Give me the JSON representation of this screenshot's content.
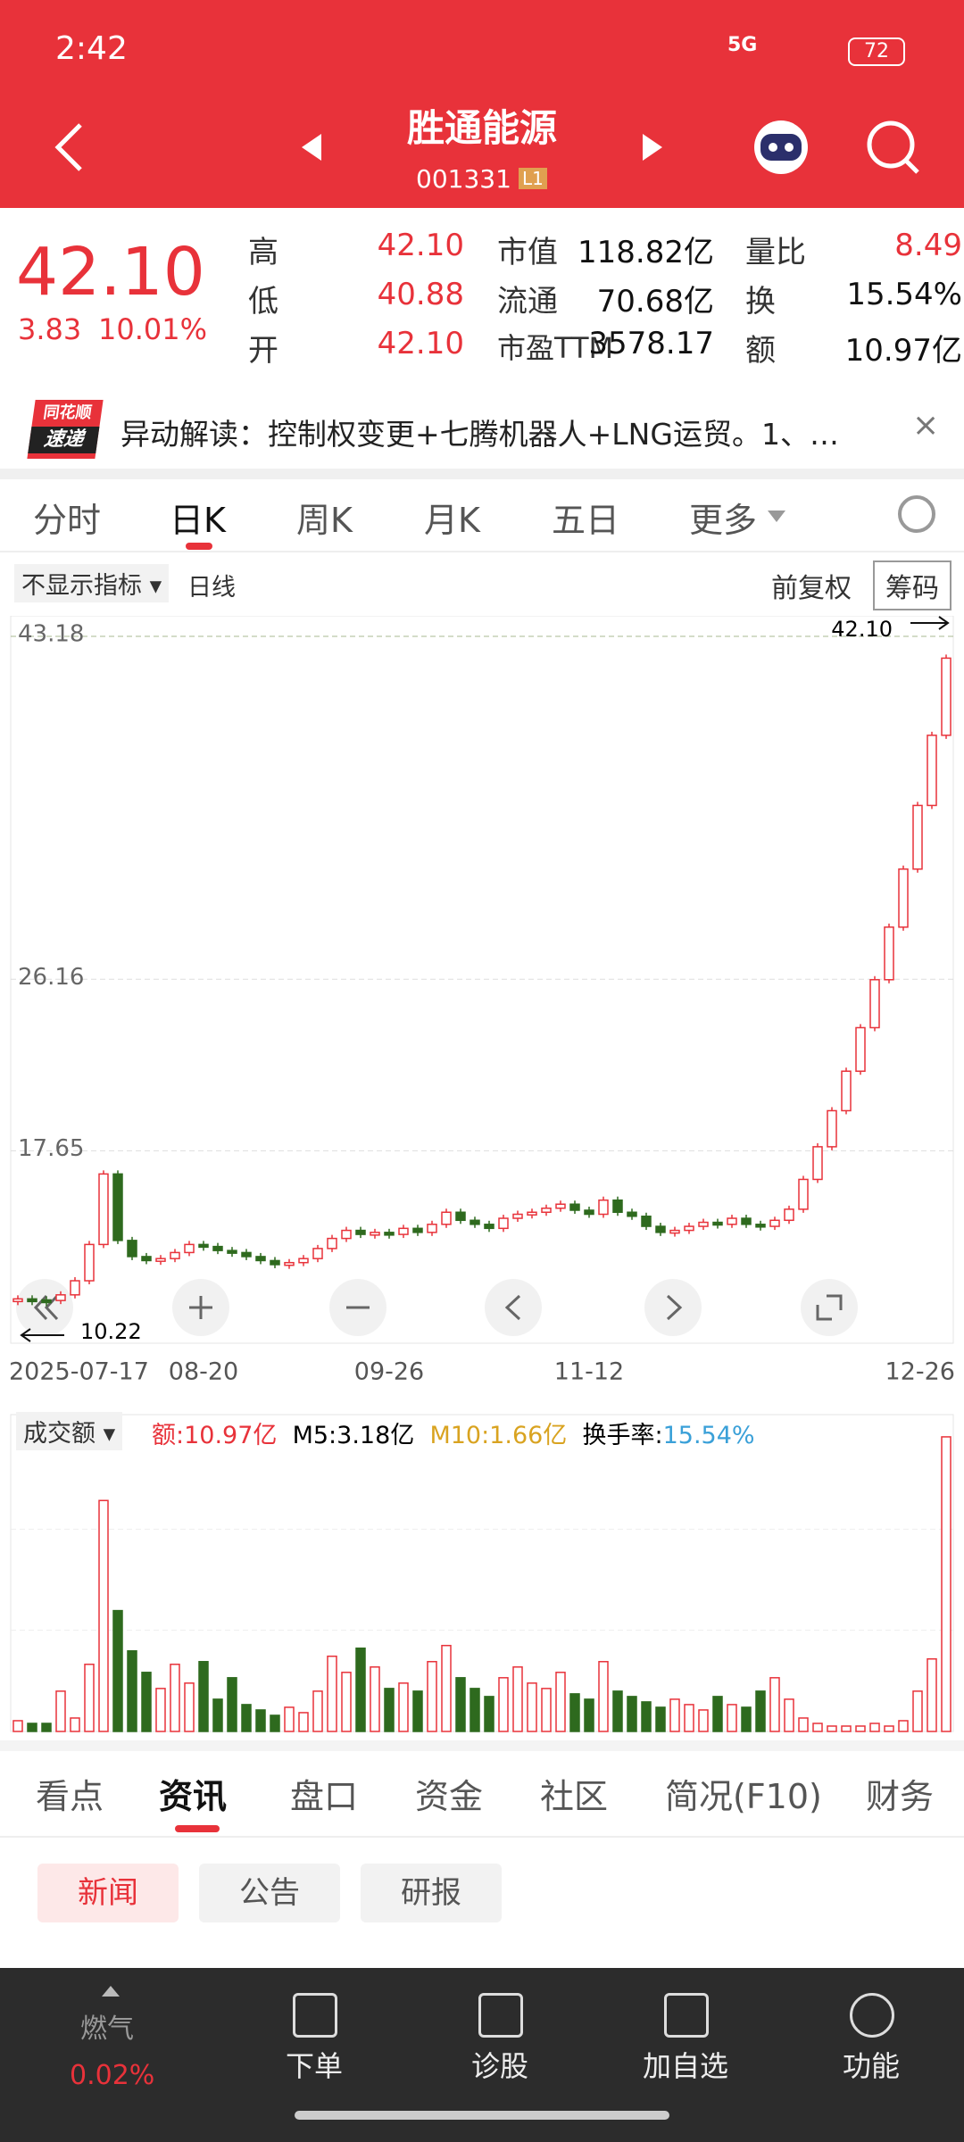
{
  "status_bar": {
    "time": "2:42",
    "network": "5G",
    "battery": "72"
  },
  "header": {
    "title": "胜通能源",
    "code": "001331",
    "badge": "L1"
  },
  "quote": {
    "price": "42.10",
    "change": "3.83",
    "change_pct": "10.01%",
    "fields": [
      [
        "高",
        "42.10",
        "市值",
        "118.82亿",
        "量比",
        "8.49"
      ],
      [
        "低",
        "40.88",
        "流通",
        "70.68亿",
        "换",
        "15.54%"
      ],
      [
        "开",
        "42.10",
        "市盈TTM",
        "3578.17",
        "额",
        "10.97亿"
      ]
    ]
  },
  "news_banner": {
    "logo_top": "同花顺",
    "logo_bottom": "速递",
    "text": "异动解读：控制权变更+七腾机器人+LNG运贸。1、…"
  },
  "period_tabs": [
    "分时",
    "日K",
    "周K",
    "月K",
    "五日",
    "更多"
  ],
  "toolbar": {
    "indicator": "不显示指标",
    "line": "日线",
    "adjust": "前复权",
    "chips": "筹码"
  },
  "chart_data": {
    "type": "candlestick",
    "categories": [
      "2025-07-17",
      null,
      null,
      null,
      null,
      null,
      null,
      null,
      null,
      null,
      null,
      null,
      null,
      "08-20",
      null,
      null,
      null,
      null,
      null,
      null,
      null,
      null,
      null,
      null,
      null,
      null,
      "09-26",
      null,
      null,
      null,
      null,
      null,
      null,
      null,
      null,
      null,
      null,
      null,
      null,
      null,
      "11-12",
      null,
      null,
      null,
      null,
      null,
      null,
      null,
      null,
      null,
      null,
      null,
      null,
      null,
      null,
      null,
      null,
      null,
      null,
      null,
      null,
      null,
      null,
      null,
      null,
      "12-26"
    ],
    "close": [
      10.3,
      10.25,
      10.22,
      10.5,
      11.2,
      13.0,
      16.5,
      13.2,
      12.4,
      12.2,
      12.3,
      12.6,
      13.0,
      12.9,
      12.7,
      12.6,
      12.4,
      12.2,
      12.0,
      12.1,
      12.3,
      12.8,
      13.3,
      13.7,
      13.5,
      13.6,
      13.5,
      13.8,
      13.6,
      14.0,
      14.6,
      14.2,
      14.0,
      13.8,
      14.3,
      14.5,
      14.6,
      14.8,
      15.0,
      14.7,
      14.5,
      15.2,
      14.6,
      14.4,
      13.9,
      13.6,
      13.7,
      13.9,
      14.1,
      14.0,
      14.3,
      14.0,
      13.9,
      14.2,
      14.75,
      16.23,
      17.85,
      19.64,
      21.6,
      23.76,
      26.14,
      28.75,
      31.63,
      34.79,
      38.27,
      42.1
    ],
    "volume": [
      0.4,
      0.3,
      0.3,
      1.5,
      0.5,
      2.5,
      8.6,
      4.5,
      3.0,
      2.2,
      1.6,
      2.5,
      1.8,
      2.6,
      1.2,
      2.0,
      1.0,
      0.8,
      0.6,
      0.9,
      0.7,
      1.5,
      2.8,
      2.2,
      3.1,
      2.4,
      1.6,
      1.8,
      1.5,
      2.6,
      3.2,
      2.0,
      1.6,
      1.3,
      2.0,
      2.4,
      1.8,
      1.6,
      2.2,
      1.4,
      1.2,
      2.6,
      1.5,
      1.3,
      1.1,
      0.9,
      1.2,
      1.0,
      0.8,
      1.3,
      1.0,
      0.9,
      1.5,
      2.0,
      1.2,
      0.5,
      0.3,
      0.2,
      0.2,
      0.2,
      0.3,
      0.2,
      0.4,
      1.5,
      2.7,
      10.97
    ],
    "ylim": [
      8.1,
      44.2
    ],
    "yticks": [
      43.18,
      26.16,
      17.65
    ],
    "volume_ylim": [
      0,
      11.3
    ],
    "high_label": "42.10",
    "low_label": "10.22",
    "up_color": "#e8323a",
    "down_color": "#2e6a1e"
  },
  "volume_legend": {
    "selector": "成交额",
    "amount_label": "额:",
    "amount": "10.97亿",
    "m5": "M5:3.18亿",
    "m10": "M10:1.66亿",
    "turnover_label": "换手率:",
    "turnover": "15.54%"
  },
  "info_tabs": [
    "看点",
    "资讯",
    "盘口",
    "资金",
    "社区",
    "简况(F10)",
    "财务"
  ],
  "news_tabs": [
    "新闻",
    "公告",
    "研报"
  ],
  "bottom_nav": {
    "sector": "燃气",
    "sector_change": "0.02%",
    "items": [
      "下单",
      "诊股",
      "加自选",
      "功能"
    ]
  }
}
